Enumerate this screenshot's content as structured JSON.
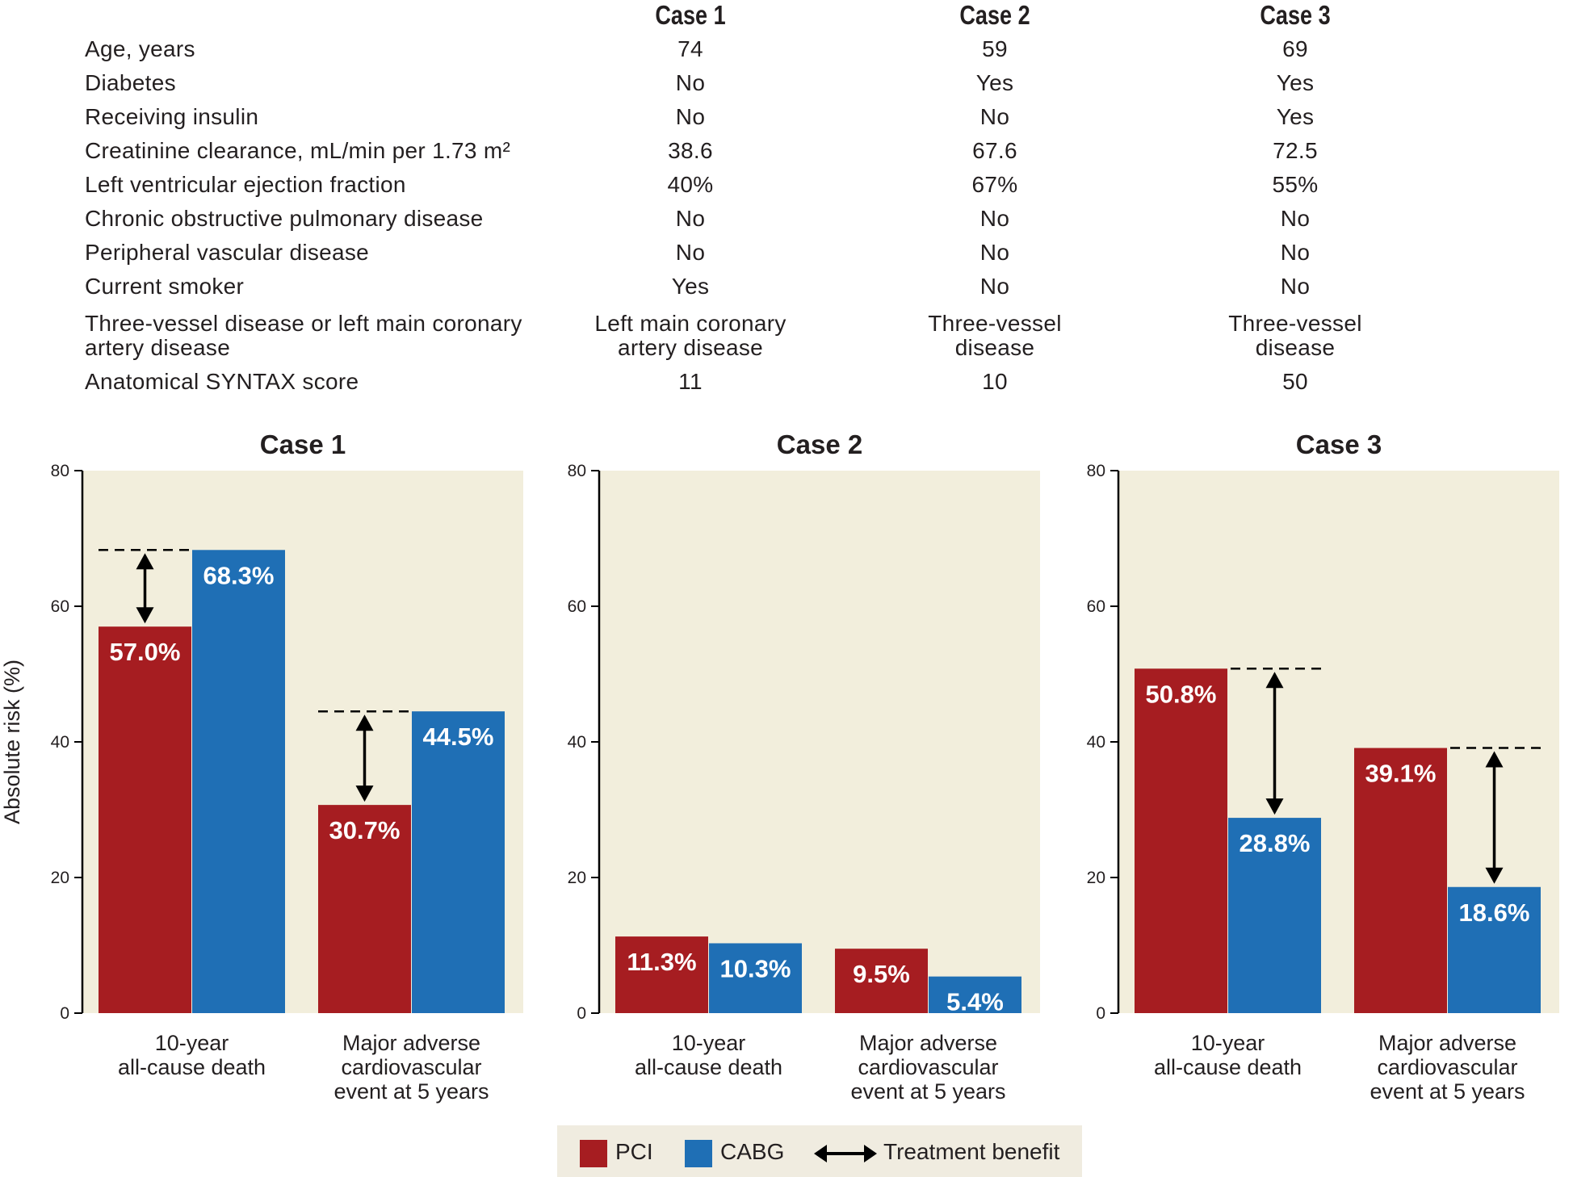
{
  "table": {
    "cases": [
      "Case 1",
      "Case 2",
      "Case 3"
    ],
    "rows": [
      {
        "label": "Age, years",
        "values": [
          "74",
          "59",
          "69"
        ]
      },
      {
        "label": "Diabetes",
        "values": [
          "No",
          "Yes",
          "Yes"
        ]
      },
      {
        "label": "Receiving insulin",
        "values": [
          "No",
          "No",
          "Yes"
        ]
      },
      {
        "label": "Creatinine clearance, mL/min per 1.73 m²",
        "values": [
          "38.6",
          "67.6",
          "72.5"
        ]
      },
      {
        "label": "Left ventricular ejection fraction",
        "values": [
          "40%",
          "67%",
          "55%"
        ]
      },
      {
        "label": "Chronic obstructive pulmonary disease",
        "values": [
          "No",
          "No",
          "No"
        ]
      },
      {
        "label": "Peripheral vascular disease",
        "values": [
          "No",
          "No",
          "No"
        ]
      },
      {
        "label": "Current smoker",
        "values": [
          "Yes",
          "No",
          "No"
        ]
      },
      {
        "label": "Three-vessel disease or left main coronary artery disease",
        "values": [
          "Left main coronary artery disease",
          "Three-vessel disease",
          "Three-vessel disease"
        ]
      },
      {
        "label": "Anatomical SYNTAX score",
        "values": [
          "11",
          "10",
          "50"
        ]
      }
    ]
  },
  "legend": {
    "pci": "PCI",
    "cabg": "CABG",
    "benefit": "Treatment benefit"
  },
  "colors": {
    "pci": "#a61d21",
    "cabg": "#1f6fb5",
    "plot_bg": "#f2eedc",
    "text": "#231f20"
  },
  "chart_data": [
    {
      "type": "bar",
      "title": "Case 1",
      "ylabel": "Absolute risk (%)",
      "ylim": [
        0,
        80
      ],
      "yticks": [
        0,
        20,
        40,
        60,
        80
      ],
      "categories": [
        "10-year all-cause death",
        "Major adverse cardiovascular event at 5 years"
      ],
      "series": [
        {
          "name": "PCI",
          "values": [
            57.0,
            30.7
          ],
          "labels": [
            "57.0%",
            "30.7%"
          ]
        },
        {
          "name": "CABG",
          "values": [
            68.3,
            44.5
          ],
          "labels": [
            "68.3%",
            "44.5%"
          ]
        }
      ],
      "treatment_benefit": [
        true,
        true
      ]
    },
    {
      "type": "bar",
      "title": "Case 2",
      "ylabel": "",
      "ylim": [
        0,
        80
      ],
      "yticks": [
        0,
        20,
        40,
        60,
        80
      ],
      "categories": [
        "10-year all-cause death",
        "Major adverse cardiovascular event at 5 years"
      ],
      "series": [
        {
          "name": "PCI",
          "values": [
            11.3,
            9.5
          ],
          "labels": [
            "11.3%",
            "9.5%"
          ]
        },
        {
          "name": "CABG",
          "values": [
            10.3,
            5.4
          ],
          "labels": [
            "10.3%",
            "5.4%"
          ]
        }
      ],
      "treatment_benefit": [
        false,
        false
      ]
    },
    {
      "type": "bar",
      "title": "Case 3",
      "ylabel": "",
      "ylim": [
        0,
        80
      ],
      "yticks": [
        0,
        20,
        40,
        60,
        80
      ],
      "categories": [
        "10-year all-cause death",
        "Major adverse cardiovascular event at 5 years"
      ],
      "series": [
        {
          "name": "PCI",
          "values": [
            50.8,
            39.1
          ],
          "labels": [
            "50.8%",
            "39.1%"
          ]
        },
        {
          "name": "CABG",
          "values": [
            28.8,
            18.6
          ],
          "labels": [
            "28.8%",
            "18.6%"
          ]
        }
      ],
      "treatment_benefit": [
        true,
        true
      ]
    }
  ]
}
